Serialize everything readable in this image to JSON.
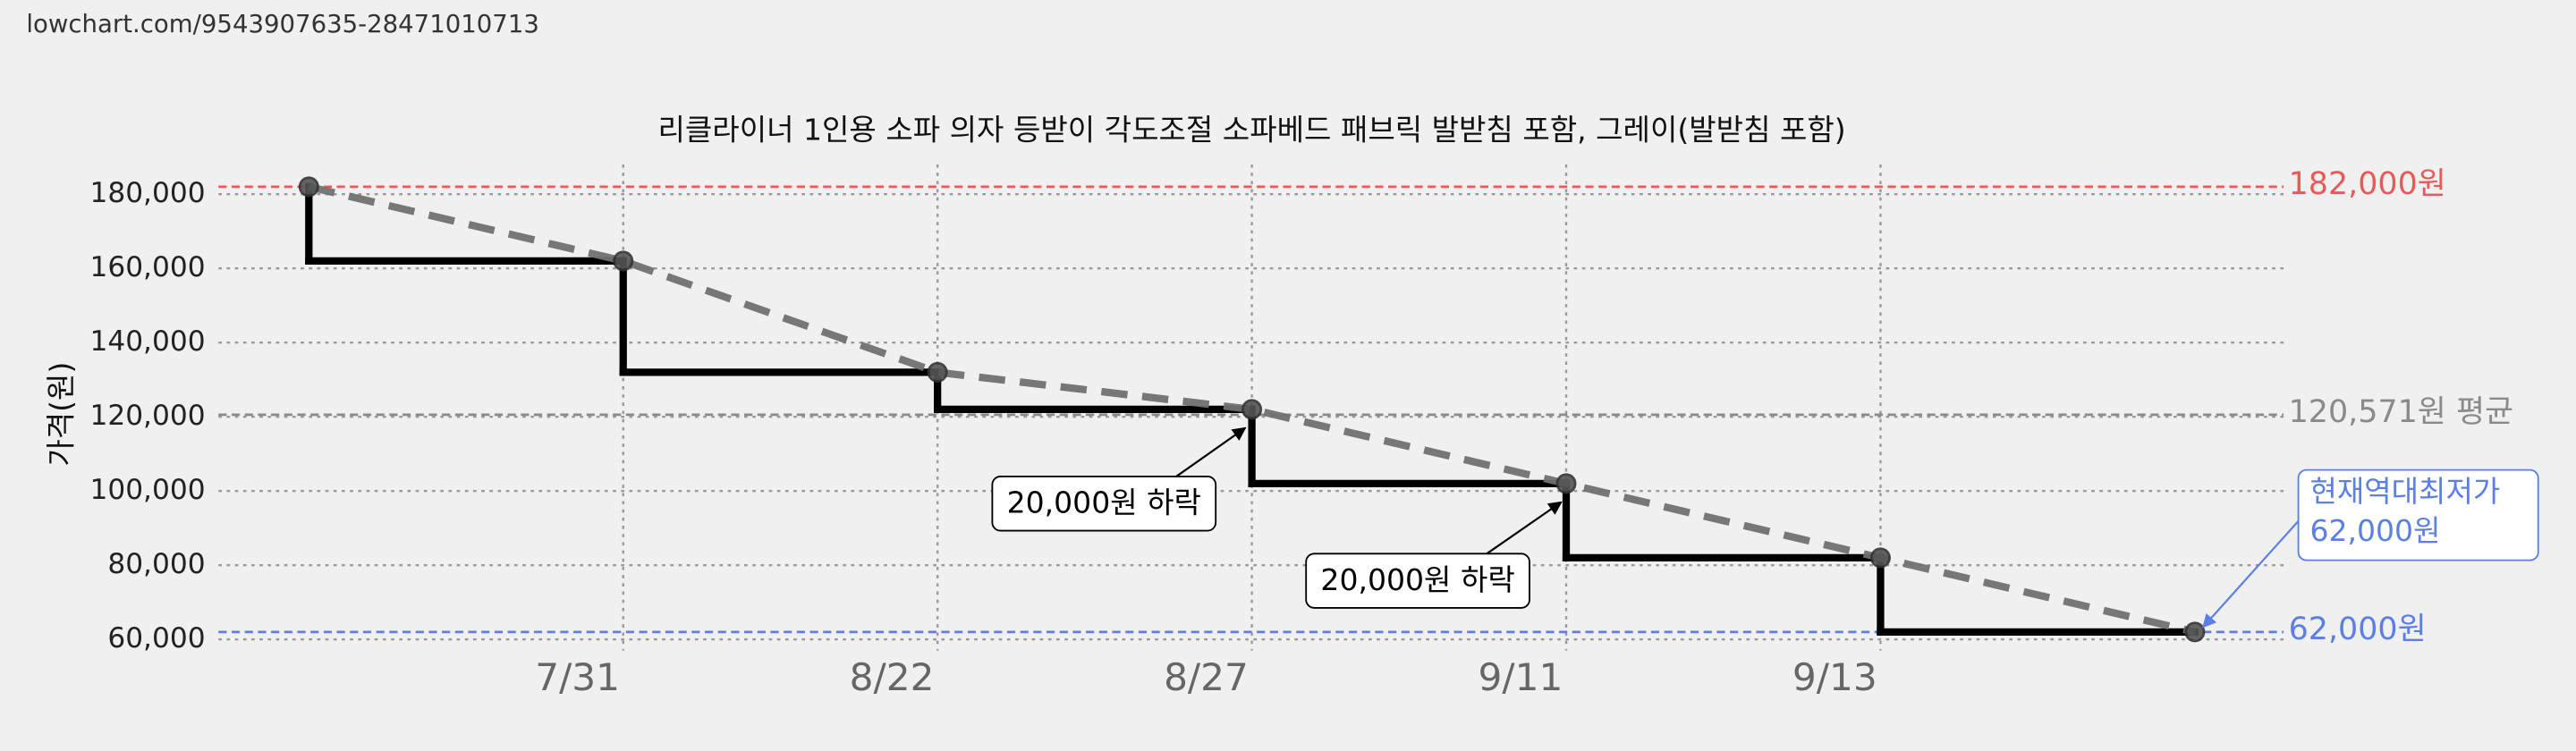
{
  "header": {
    "url": "lowchart.com/9543907635-28471010713"
  },
  "chart_data": {
    "type": "line",
    "step": true,
    "title": "리클라이너 1인용 소파 의자 등받이 각도조절 소파베드 패브릭 발받침 포함, 그레이(발받침 포함)",
    "y_label": "가격(원)",
    "categories": [
      null,
      "7/31",
      "8/22",
      "8/27",
      "9/11",
      "9/13",
      null
    ],
    "series": [
      {
        "color": "#000000",
        "values": [
          182000,
          162000,
          132000,
          122000,
          102000,
          82000,
          62000
        ]
      }
    ],
    "trend_line": {
      "color": "#707070",
      "dashed": true
    },
    "ylim": [
      57000,
      188000
    ],
    "yticks": [
      {
        "value": 60000,
        "label": "60,000"
      },
      {
        "value": 80000,
        "label": "80,000"
      },
      {
        "value": 100000,
        "label": "100,000"
      },
      {
        "value": 120000,
        "label": "120,000"
      },
      {
        "value": 140000,
        "label": "140,000"
      },
      {
        "value": 160000,
        "label": "160,000"
      },
      {
        "value": 180000,
        "label": "180,000"
      }
    ],
    "grid": true,
    "reference_lines": [
      {
        "value": 182000,
        "label": "182,000원",
        "color": "#e85a5a"
      },
      {
        "value": 120571,
        "label": "120,571원 평균",
        "color": "#8a8a8a"
      },
      {
        "value": 62000,
        "label": "62,000원",
        "color": "#5b7fe6"
      }
    ],
    "annotations": [
      {
        "text": "20,000원 하락"
      },
      {
        "text": "20,000원 하락"
      }
    ],
    "current_low": {
      "lines": [
        "현재역대최저가",
        "62,000원"
      ],
      "color": "#5b7fe6"
    }
  }
}
